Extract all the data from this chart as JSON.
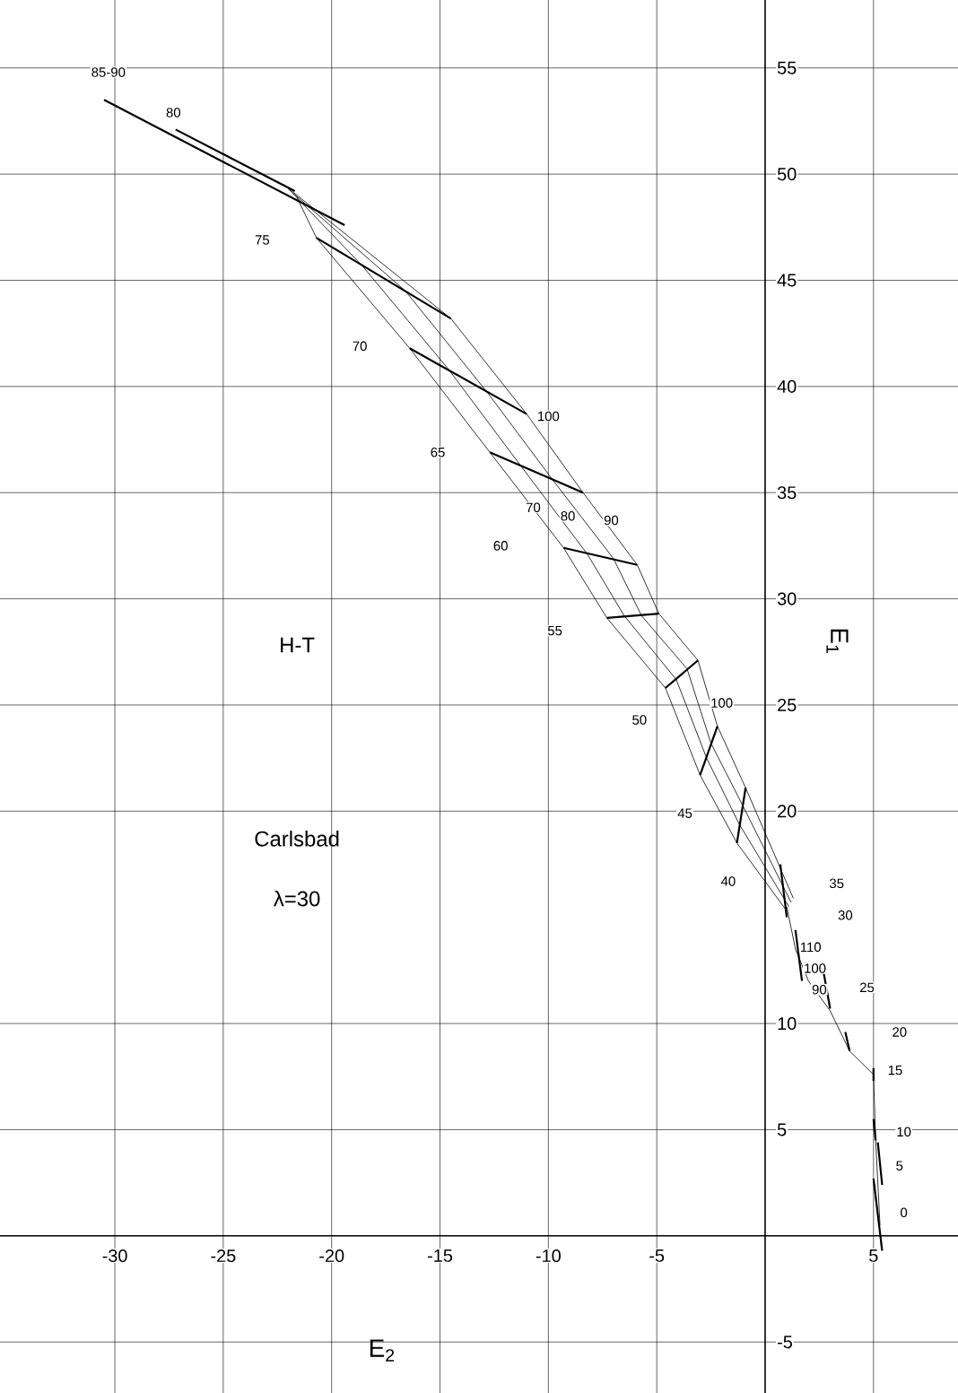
{
  "chart_data": {
    "type": "line",
    "xlabel": "E$_{2}$",
    "ylabel": "E$_{1}$",
    "xlim": [
      -35.3,
      8.9
    ],
    "ylim": [
      -7.4,
      58.2
    ],
    "xticks": [
      -30,
      -25,
      -20,
      -15,
      -10,
      -5,
      5
    ],
    "yticks": [
      -5,
      5,
      10,
      20,
      25,
      30,
      35,
      40,
      45,
      50,
      55
    ],
    "grid": true,
    "series": [
      {
        "color": "#000000",
        "x": [
          -21.6,
          -20.7,
          -16.4,
          -12.7,
          -9.3,
          -7.3,
          -4.6,
          -3.0,
          -1.3,
          1.0
        ],
        "values": [
          48.9,
          47.0,
          41.8,
          36.9,
          32.4,
          29.1,
          25.8,
          21.7,
          18.5,
          15.3
        ]
      },
      {
        "color": "#000000",
        "x": [
          -21.8,
          -18.6,
          -14.6,
          -11.3,
          -8.2,
          -6.5,
          -4.1,
          -2.7,
          -1.2,
          1.1
        ],
        "values": [
          49.1,
          45.7,
          40.8,
          36.3,
          32.1,
          29.2,
          26.2,
          22.5,
          19.4,
          15.5
        ]
      },
      {
        "color": "#000000",
        "x": [
          -22.0,
          -16.6,
          -12.8,
          -9.8,
          -7.0,
          -5.7,
          -3.6,
          -2.5,
          -1.0,
          1.2
        ],
        "values": [
          49.3,
          44.5,
          39.7,
          35.6,
          31.9,
          29.2,
          26.7,
          23.2,
          20.2,
          15.7
        ]
      },
      {
        "color": "#000000",
        "x": [
          -22.2,
          -14.5,
          -11.0,
          -8.4,
          -5.9,
          -4.9,
          -3.1,
          -2.2,
          -0.9,
          1.3
        ],
        "values": [
          49.5,
          43.2,
          38.7,
          35.0,
          31.6,
          29.3,
          27.1,
          24.0,
          21.1,
          15.9
        ]
      },
      {
        "color": "#000000",
        "x": [
          1.0,
          1.4,
          2.0,
          3.0,
          3.9,
          5.0,
          5.1,
          5.3
        ],
        "values": [
          15.5,
          13.5,
          12.0,
          10.6,
          8.7,
          7.6,
          4.5,
          0.5
        ]
      },
      {
        "color": "#000000",
        "x": [
          -30.5,
          -19.4
        ],
        "values": [
          53.5,
          47.6
        ]
      },
      {
        "color": "#000000",
        "x": [
          -27.2,
          -21.7
        ],
        "values": [
          52.1,
          49.2
        ]
      },
      {
        "color": "#000000",
        "x": [
          -20.7,
          -14.5
        ],
        "values": [
          47.0,
          43.2
        ]
      },
      {
        "color": "#000000",
        "x": [
          -16.4,
          -11.0
        ],
        "values": [
          41.8,
          38.7
        ]
      },
      {
        "color": "#000000",
        "x": [
          -12.7,
          -8.4
        ],
        "values": [
          36.9,
          35.0
        ]
      },
      {
        "color": "#000000",
        "x": [
          -9.3,
          -5.9
        ],
        "values": [
          32.4,
          31.6
        ]
      },
      {
        "color": "#000000",
        "x": [
          -7.3,
          -4.9
        ],
        "values": [
          29.1,
          29.3
        ]
      },
      {
        "color": "#000000",
        "x": [
          -4.6,
          -3.1
        ],
        "values": [
          25.8,
          27.1
        ]
      },
      {
        "color": "#000000",
        "x": [
          -3.0,
          -2.2
        ],
        "values": [
          21.7,
          24.0
        ]
      },
      {
        "color": "#000000",
        "x": [
          -1.3,
          -0.9
        ],
        "values": [
          18.5,
          21.1
        ]
      },
      {
        "color": "#000000",
        "x": [
          0.7,
          1.0
        ],
        "values": [
          17.5,
          15.0
        ]
      },
      {
        "color": "#000000",
        "x": [
          1.4,
          1.7
        ],
        "values": [
          14.4,
          12.0
        ]
      },
      {
        "color": "#000000",
        "x": [
          2.7,
          3.0
        ],
        "values": [
          12.4,
          10.7
        ]
      },
      {
        "color": "#000000",
        "x": [
          3.7,
          3.9
        ],
        "values": [
          9.6,
          8.7
        ]
      },
      {
        "color": "#000000",
        "x": [
          5.0,
          5.0
        ],
        "values": [
          7.9,
          7.3
        ]
      },
      {
        "color": "#000000",
        "x": [
          5.0,
          5.1
        ],
        "values": [
          5.5,
          4.5
        ]
      },
      {
        "color": "#000000",
        "x": [
          5.2,
          5.4
        ],
        "values": [
          4.4,
          2.4
        ]
      },
      {
        "color": "#000000",
        "x": [
          5.0,
          5.4
        ],
        "values": [
          2.7,
          -0.7
        ]
      }
    ],
    "annotations": [
      "H-T",
      "Carlsbad",
      "λ=30",
      {
        "text": "85-90",
        "x": -30.3,
        "y": 54.8
      },
      {
        "text": "80",
        "x": -27.3,
        "y": 52.9
      },
      {
        "text": "75",
        "x": -23.2,
        "y": 46.9
      },
      {
        "text": "70",
        "x": -18.7,
        "y": 41.9
      },
      {
        "text": "65",
        "x": -15.1,
        "y": 36.9
      },
      {
        "text": "60",
        "x": -12.2,
        "y": 32.5
      },
      {
        "text": "55",
        "x": -9.7,
        "y": 28.5
      },
      {
        "text": "50",
        "x": -5.8,
        "y": 24.3
      },
      {
        "text": "45",
        "x": -3.7,
        "y": 19.9
      },
      {
        "text": "40",
        "x": -1.7,
        "y": 16.7
      },
      {
        "text": "35",
        "x": 3.3,
        "y": 16.6
      },
      {
        "text": "30",
        "x": 3.7,
        "y": 15.1
      },
      {
        "text": "25",
        "x": 4.7,
        "y": 11.7
      },
      {
        "text": "20",
        "x": 6.2,
        "y": 9.6
      },
      {
        "text": "15",
        "x": 6.0,
        "y": 7.8
      },
      {
        "text": "10",
        "x": 6.4,
        "y": 4.9
      },
      {
        "text": "5",
        "x": 6.2,
        "y": 3.3
      },
      {
        "text": "0",
        "x": 6.4,
        "y": 1.1
      },
      {
        "text": "100",
        "x": -10.0,
        "y": 38.6
      },
      {
        "text": "70",
        "x": -10.7,
        "y": 34.3
      },
      {
        "text": "80",
        "x": -9.1,
        "y": 33.9
      },
      {
        "text": "90",
        "x": -7.1,
        "y": 33.7
      },
      {
        "text": "100",
        "x": -2.0,
        "y": 25.1
      },
      {
        "text": "110",
        "x": 2.1,
        "y": 13.6
      },
      {
        "text": "100",
        "x": 2.3,
        "y": 12.6
      },
      {
        "text": "90",
        "x": 2.5,
        "y": 11.6
      }
    ]
  }
}
